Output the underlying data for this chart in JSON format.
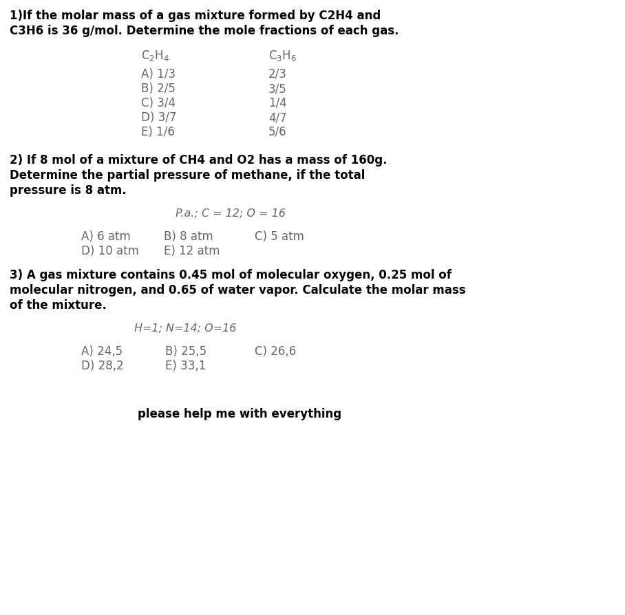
{
  "bg_color": "#ffffff",
  "text_color": "#000000",
  "gray_color": "#666666",
  "q1_bold_line1": "1)If the molar mass of a gas mixture formed by C2H4 and",
  "q1_bold_line2": "C3H6 is 36 g/mol. Determine the mole fractions of each gas.",
  "q1_header_c2h4": "$\\mathrm{C_2H_4}$",
  "q1_header_c3h6": "$\\mathrm{C_3H_6}$",
  "q1_rows": [
    [
      "A) 1/3",
      "2/3"
    ],
    [
      "B) 2/5",
      "3/5"
    ],
    [
      "C) 3/4",
      "1/4"
    ],
    [
      "D) 3/7",
      "4/7"
    ],
    [
      "E) 1/6",
      "5/6"
    ]
  ],
  "q2_bold_line1": "2) If 8 mol of a mixture of CH4 and O2 has a mass of 160g.",
  "q2_bold_line2": "Determine the partial pressure of methane, if the total",
  "q2_bold_line3": "pressure is 8 atm.",
  "q2_hint": "P.a.; C = 12; O = 16",
  "q2_answers_row1": [
    "A) 6 atm",
    "B) 8 atm",
    "C) 5 atm"
  ],
  "q2_answers_row2": [
    "D) 10 atm",
    "E) 12 atm"
  ],
  "q3_bold_line1": "3) A gas mixture contains 0.45 mol of molecular oxygen, 0.25 mol of",
  "q3_bold_line2": "molecular nitrogen, and 0.65 of water vapor. Calculate the molar mass",
  "q3_bold_line3": "of the mixture.",
  "q3_hint": "H=1; N=14; O=16",
  "q3_answers_row1": [
    "A) 24,5",
    "B) 25,5",
    "C) 26,6"
  ],
  "q3_answers_row2": [
    "D) 28,2",
    "E) 33,1"
  ],
  "footer": "please help me with everything",
  "fig_width": 9.08,
  "fig_height": 8.94,
  "dpi": 100
}
